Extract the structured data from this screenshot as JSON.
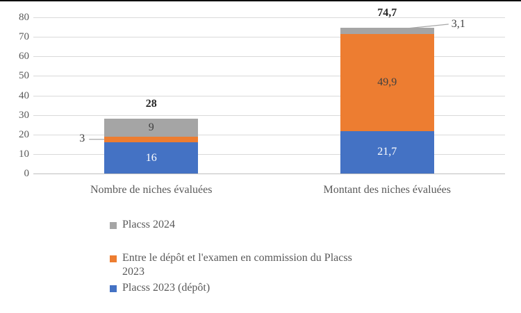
{
  "chart_data": {
    "type": "bar",
    "subtype": "stacked-vertical",
    "categories": [
      "Nombre de niches évaluées",
      "Montant des niches évaluées"
    ],
    "series": [
      {
        "name": "Placss 2023 (dépôt)",
        "color": "#4472C4",
        "values": [
          16,
          21.7
        ],
        "value_labels": [
          "16",
          "21,7"
        ],
        "label_style": "light"
      },
      {
        "name": "Entre le dépôt et l'examen en commission du Placss 2023",
        "color": "#ED7D31",
        "values": [
          3,
          49.9
        ],
        "value_labels": [
          "3",
          "49,9"
        ],
        "label_style": "dark"
      },
      {
        "name": "Placss 2024",
        "color": "#A5A5A5",
        "values": [
          9,
          3.1
        ],
        "value_labels": [
          "9",
          "3,1"
        ],
        "label_style": "dark"
      }
    ],
    "totals": [
      28,
      74.7
    ],
    "total_labels": [
      "28",
      "74,7"
    ],
    "y_axis": {
      "min": 0,
      "max": 80,
      "tick_step": 10,
      "tick_values": [
        0,
        10,
        20,
        30,
        40,
        50,
        60,
        70,
        80
      ],
      "tick_labels": [
        "0",
        "10",
        "20",
        "30",
        "40",
        "50",
        "60",
        "70",
        "80"
      ]
    },
    "grid": "horizontal",
    "legend_position": "bottom-left",
    "legend": [
      {
        "label": "Placss 2024",
        "lines": [
          "Placss 2024"
        ],
        "color": "#A5A5A5"
      },
      {
        "label": "Entre le dépôt et l'examen en commission du Placss 2023",
        "lines": [
          "Entre le dépôt et l'examen en commission du Placss",
          "2023"
        ],
        "color": "#ED7D31"
      },
      {
        "label": "Placss 2023 (dépôt)",
        "lines": [
          "Placss 2023 (dépôt)"
        ],
        "color": "#4472C4"
      }
    ],
    "colors": {
      "grid_line": "#D9D9D9",
      "axis_line": "#BFBFBF",
      "tick_text": "#595959",
      "category_text": "#595959",
      "legend_text": "#595959",
      "label_dark": "#404040",
      "label_light": "#FFFFFF",
      "total_text": "#262626",
      "leader_line": "#A6A6A6",
      "top_rule": "#0D0D0D"
    }
  }
}
